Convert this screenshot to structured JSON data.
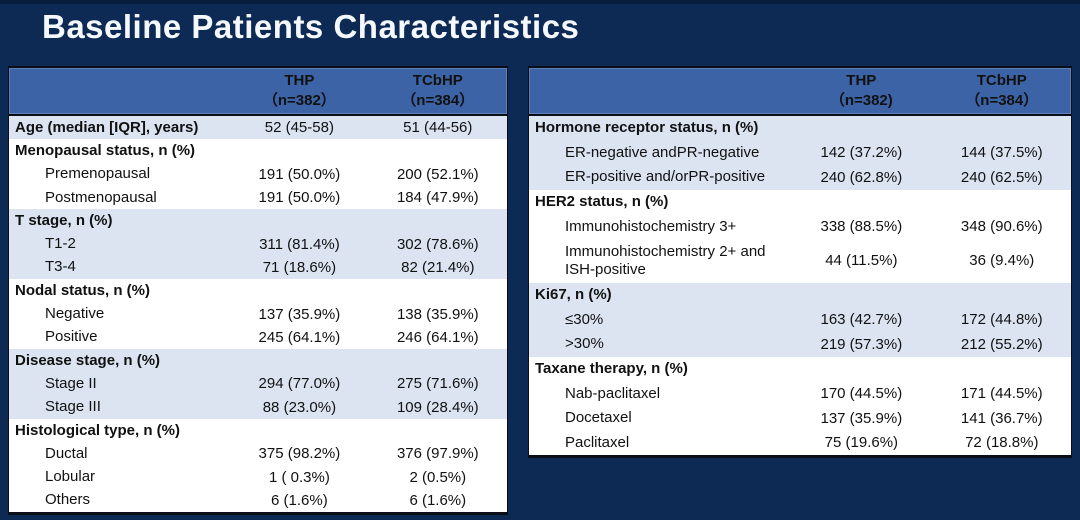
{
  "title": "Baseline Patients Characteristics",
  "colors": {
    "background_navy": "#0d2a55",
    "header_blue": "#3c63a6",
    "row_blue": "#dce4f2",
    "row_white": "#ffffff",
    "border_black": "#0a0e16",
    "title_text": "#ffffff",
    "body_text": "#111111"
  },
  "tables": [
    {
      "id": "left",
      "col1": {
        "name": "THP",
        "n": "（n=382）"
      },
      "col2": {
        "name": "TCbHP",
        "n": "（n=384）"
      },
      "rows": [
        {
          "label": "Age (median [IQR], years)",
          "bold": true,
          "indent": false,
          "v1": "52 (45-58)",
          "v2": "51 (44-56)",
          "shade": "blue"
        },
        {
          "label": "Menopausal status, n (%)",
          "bold": true,
          "indent": false,
          "v1": "",
          "v2": "",
          "shade": "white"
        },
        {
          "label": "Premenopausal",
          "bold": false,
          "indent": true,
          "v1": "191 (50.0%)",
          "v2": "200 (52.1%)",
          "shade": "white"
        },
        {
          "label": "Postmenopausal",
          "bold": false,
          "indent": true,
          "v1": "191 (50.0%)",
          "v2": "184 (47.9%)",
          "shade": "white"
        },
        {
          "label": "T stage, n (%)",
          "bold": true,
          "indent": false,
          "v1": "",
          "v2": "",
          "shade": "blue"
        },
        {
          "label": "T1-2",
          "bold": false,
          "indent": true,
          "v1": "311 (81.4%)",
          "v2": "302 (78.6%)",
          "shade": "blue"
        },
        {
          "label": "T3-4",
          "bold": false,
          "indent": true,
          "v1": "71 (18.6%)",
          "v2": "82 (21.4%)",
          "shade": "blue"
        },
        {
          "label": "Nodal status, n (%)",
          "bold": true,
          "indent": false,
          "v1": "",
          "v2": "",
          "shade": "white"
        },
        {
          "label": "Negative",
          "bold": false,
          "indent": true,
          "v1": "137 (35.9%)",
          "v2": "138 (35.9%)",
          "shade": "white"
        },
        {
          "label": "Positive",
          "bold": false,
          "indent": true,
          "v1": "245 (64.1%)",
          "v2": "246 (64.1%)",
          "shade": "white"
        },
        {
          "label": "Disease stage, n (%)",
          "bold": true,
          "indent": false,
          "v1": "",
          "v2": "",
          "shade": "blue"
        },
        {
          "label": "Stage II",
          "bold": false,
          "indent": true,
          "v1": "294 (77.0%)",
          "v2": "275 (71.6%)",
          "shade": "blue"
        },
        {
          "label": "Stage III",
          "bold": false,
          "indent": true,
          "v1": "88 (23.0%)",
          "v2": "109 (28.4%)",
          "shade": "blue"
        },
        {
          "label": "Histological type, n (%)",
          "bold": true,
          "indent": false,
          "v1": "",
          "v2": "",
          "shade": "white"
        },
        {
          "label": "Ductal",
          "bold": false,
          "indent": true,
          "v1": "375 (98.2%)",
          "v2": "376 (97.9%)",
          "shade": "white"
        },
        {
          "label": "Lobular",
          "bold": false,
          "indent": true,
          "v1": "1 ( 0.3%)",
          "v2": "2 (0.5%)",
          "shade": "white"
        },
        {
          "label": "Others",
          "bold": false,
          "indent": true,
          "v1": "6 (1.6%)",
          "v2": "6 (1.6%)",
          "shade": "white"
        }
      ]
    },
    {
      "id": "right",
      "col1": {
        "name": "THP",
        "n": "（n=382)"
      },
      "col2": {
        "name": "TCbHP",
        "n": "（n=384）"
      },
      "rows": [
        {
          "label": "Hormone receptor status, n (%)",
          "bold": true,
          "indent": false,
          "v1": "",
          "v2": "",
          "shade": "blue"
        },
        {
          "label": "ER-negative andPR-negative",
          "bold": false,
          "indent": true,
          "v1": "142 (37.2%)",
          "v2": "144 (37.5%)",
          "shade": "blue"
        },
        {
          "label": "ER-positive and/orPR-positive",
          "bold": false,
          "indent": true,
          "v1": "240 (62.8%)",
          "v2": "240 (62.5%)",
          "shade": "blue"
        },
        {
          "label": "HER2 status, n (%)",
          "bold": true,
          "indent": false,
          "v1": "",
          "v2": "",
          "shade": "white"
        },
        {
          "label": "Immunohistochemistry 3+",
          "bold": false,
          "indent": true,
          "v1": "338 (88.5%)",
          "v2": "348 (90.6%)",
          "shade": "white"
        },
        {
          "label": "Immunohistochemistry 2+ and ISH-positive",
          "bold": false,
          "indent": true,
          "v1": "44 (11.5%)",
          "v2": "36 (9.4%)",
          "shade": "white",
          "tall": true
        },
        {
          "label": "Ki67, n (%)",
          "bold": true,
          "indent": false,
          "v1": "",
          "v2": "",
          "shade": "blue"
        },
        {
          "label": "≤30%",
          "bold": false,
          "indent": true,
          "v1": "163 (42.7%)",
          "v2": "172 (44.8%)",
          "shade": "blue"
        },
        {
          "label": ">30%",
          "bold": false,
          "indent": true,
          "v1": "219 (57.3%)",
          "v2": "212 (55.2%)",
          "shade": "blue"
        },
        {
          "label": "Taxane therapy, n (%)",
          "bold": true,
          "indent": false,
          "v1": "",
          "v2": "",
          "shade": "white"
        },
        {
          "label": "Nab-paclitaxel",
          "bold": false,
          "indent": true,
          "v1": "170 (44.5%)",
          "v2": "171 (44.5%)",
          "shade": "white"
        },
        {
          "label": "Docetaxel",
          "bold": false,
          "indent": true,
          "v1": "137 (35.9%)",
          "v2": "141 (36.7%)",
          "shade": "white"
        },
        {
          "label": "Paclitaxel",
          "bold": false,
          "indent": true,
          "v1": "75 (19.6%)",
          "v2": "72 (18.8%)",
          "shade": "white"
        }
      ]
    }
  ]
}
